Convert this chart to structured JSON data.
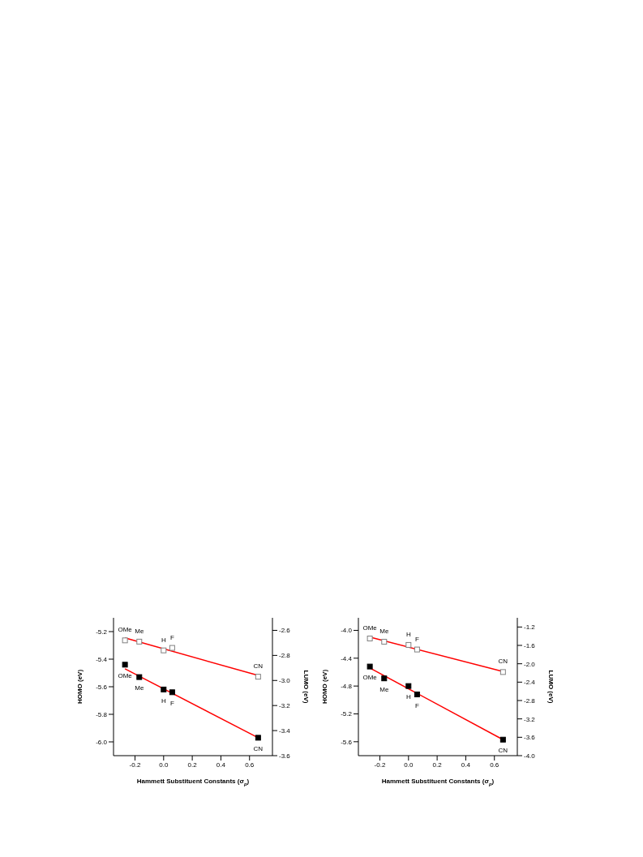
{
  "chart_data": [
    {
      "type": "scatter",
      "xlabel": "Hammett Substituent Constants (σ$_{p}$)",
      "ylabel": "HOMO (eV)",
      "y2label": "LUMO (eV)",
      "xlim": [
        -0.35,
        0.76
      ],
      "ylim": [
        -6.1,
        -5.1
      ],
      "y2lim": [
        -3.6,
        -2.5
      ],
      "xticks": [
        -0.2,
        {
          "value": 0,
          "label": "0.0"
        },
        0.2,
        0.4,
        0.6
      ],
      "yticks": [
        {
          "value": -6,
          "label": "-6.0"
        },
        -5.8,
        -5.6,
        -5.4,
        -5.2
      ],
      "y2ticks": [
        -3.6,
        -3.4,
        -3.2,
        {
          "value": -3,
          "label": "-3.0"
        },
        -2.8,
        -2.6
      ],
      "grid": false,
      "legend": false,
      "series": [
        {
          "marker": "square",
          "color": "#000000",
          "x": [
            -0.27,
            -0.17,
            0,
            0.06,
            0.66
          ],
          "values": [
            -5.44,
            -5.53,
            -5.62,
            -5.64,
            -5.97
          ],
          "value_labels": [
            "OMe",
            "Me",
            "H",
            "F",
            "CN"
          ]
        },
        {
          "marker": "square",
          "color": "#808080",
          "axis": "y2",
          "x": [
            -0.27,
            -0.17,
            0,
            0.06,
            0.66
          ],
          "values": [
            -2.68,
            -2.69,
            -2.76,
            -2.74,
            -2.97
          ],
          "value_labels": [
            "OMe",
            "Me",
            "H",
            "F",
            "CN"
          ]
        },
        {
          "type": "line",
          "marker": "none",
          "color": "#ff0000",
          "x": [
            -0.27,
            0.66
          ],
          "values": [
            -5.47,
            -5.97
          ]
        },
        {
          "type": "line",
          "marker": "none",
          "color": "#ff0000",
          "axis": "y2",
          "x": [
            -0.27,
            0.66
          ],
          "values": [
            -2.66,
            -2.96
          ]
        }
      ]
    },
    {
      "type": "scatter",
      "xlabel": "Hammett Substituent Constants (σ$_{p}$)",
      "ylabel": "HOMO (eV)",
      "y2label": "LUMO (eV)",
      "xlim": [
        -0.35,
        0.76
      ],
      "ylim": [
        -5.8,
        -3.82
      ],
      "y2lim": [
        -4.0,
        -1.0
      ],
      "xticks": [
        -0.2,
        {
          "value": 0,
          "label": "0.0"
        },
        0.2,
        0.4,
        0.6
      ],
      "yticks": [
        -5.6,
        -5.2,
        -4.8,
        -4.4,
        {
          "value": -4,
          "label": "-4.0"
        }
      ],
      "y2ticks": [
        {
          "value": -4,
          "label": "-4.0"
        },
        -3.6,
        -3.2,
        -2.8,
        -2.4,
        {
          "value": -2,
          "label": "-2.0"
        },
        -1.6,
        -1.2
      ],
      "grid": false,
      "legend": false,
      "series": [
        {
          "marker": "square",
          "color": "#000000",
          "x": [
            -0.27,
            -0.17,
            0,
            0.06,
            0.66
          ],
          "values": [
            -4.52,
            -4.69,
            -4.8,
            -4.92,
            -5.57
          ],
          "value_labels": [
            "OMe",
            "Me",
            "H",
            "F",
            "CN"
          ]
        },
        {
          "marker": "square",
          "color": "#808080",
          "axis": "y2",
          "x": [
            -0.27,
            -0.17,
            0,
            0.06,
            0.66
          ],
          "values": [
            -1.45,
            -1.52,
            -1.59,
            -1.69,
            -2.18
          ],
          "value_labels": [
            "OMe",
            "Me",
            "H",
            "F",
            "CN"
          ]
        },
        {
          "type": "line",
          "marker": "none",
          "color": "#ff0000",
          "x": [
            -0.27,
            0.66
          ],
          "values": [
            -4.54,
            -5.57
          ]
        },
        {
          "type": "line",
          "marker": "none",
          "color": "#ff0000",
          "axis": "y2",
          "x": [
            -0.27,
            0.66
          ],
          "values": [
            -1.42,
            -2.17
          ]
        }
      ]
    }
  ]
}
